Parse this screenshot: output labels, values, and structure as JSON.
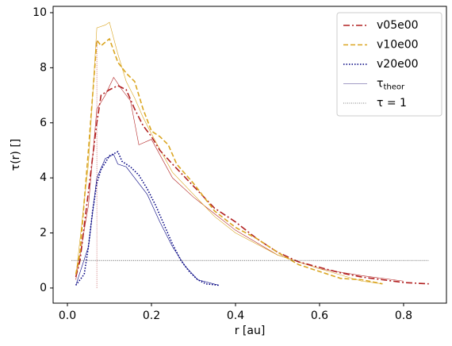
{
  "chart_data": {
    "type": "line",
    "xlabel": "r [au]",
    "ylabel": "τ(r) []",
    "xlim": [
      -0.034,
      0.902
    ],
    "ylim": [
      -0.55,
      10.23
    ],
    "xticks": [
      {
        "value": 0,
        "label": "0.0"
      },
      0.2,
      0.4,
      0.6,
      0.8
    ],
    "yticks": [
      0,
      2,
      4,
      6,
      8,
      10
    ],
    "legend": "upper right",
    "series": [
      {
        "name": "v05e00",
        "color": "#b22222",
        "dash": "dashdot",
        "x": [
          0.02,
          0.03,
          0.05,
          0.07,
          0.08,
          0.1,
          0.12,
          0.14,
          0.16,
          0.18,
          0.2,
          0.22,
          0.25,
          0.3,
          0.35,
          0.4,
          0.45,
          0.5,
          0.55,
          0.6,
          0.65,
          0.7,
          0.75,
          0.8,
          0.86
        ],
        "values": [
          0.4,
          1.0,
          3.5,
          6.0,
          7.0,
          7.2,
          7.35,
          7.2,
          6.5,
          5.9,
          5.5,
          5.0,
          4.5,
          3.7,
          2.9,
          2.4,
          1.8,
          1.3,
          0.95,
          0.75,
          0.55,
          0.4,
          0.3,
          0.2,
          0.15
        ]
      },
      {
        "name": "v10e00",
        "color": "#daa520",
        "dash": "dashed",
        "x": [
          0.02,
          0.03,
          0.05,
          0.07,
          0.08,
          0.1,
          0.12,
          0.14,
          0.16,
          0.18,
          0.2,
          0.22,
          0.24,
          0.26,
          0.3,
          0.35,
          0.4,
          0.45,
          0.5,
          0.55,
          0.6,
          0.65,
          0.7,
          0.75
        ],
        "values": [
          0.5,
          1.3,
          5.0,
          9.0,
          8.8,
          9.05,
          8.2,
          7.8,
          7.5,
          6.5,
          5.7,
          5.5,
          5.2,
          4.5,
          3.8,
          2.8,
          2.2,
          1.8,
          1.3,
          0.85,
          0.6,
          0.35,
          0.3,
          0.15
        ]
      },
      {
        "name": "v20e00",
        "color": "#000080",
        "dash": "dotted",
        "x": [
          0.02,
          0.04,
          0.05,
          0.06,
          0.07,
          0.08,
          0.1,
          0.12,
          0.13,
          0.15,
          0.17,
          0.19,
          0.21,
          0.23,
          0.25,
          0.27,
          0.29,
          0.31,
          0.33,
          0.36
        ],
        "values": [
          0.1,
          0.5,
          1.5,
          2.8,
          3.8,
          4.3,
          4.8,
          4.95,
          4.6,
          4.4,
          4.1,
          3.6,
          3.0,
          2.3,
          1.6,
          1.0,
          0.6,
          0.3,
          0.15,
          0.1
        ]
      }
    ],
    "theory": {
      "name": "τ",
      "subscript": "theor",
      "color": "#483d8b",
      "lines": [
        {
          "color": "#b22222",
          "x": [
            0.02,
            0.05,
            0.07,
            0.09,
            0.11,
            0.13,
            0.15,
            0.17,
            0.2,
            0.25,
            0.3,
            0.35,
            0.4,
            0.5,
            0.6,
            0.7,
            0.8
          ],
          "values": [
            0.3,
            3.0,
            6.5,
            7.0,
            7.65,
            7.2,
            6.8,
            5.2,
            5.4,
            4.0,
            3.3,
            2.7,
            2.1,
            1.2,
            0.7,
            0.45,
            0.25
          ]
        },
        {
          "color": "#daa520",
          "x": [
            0.02,
            0.05,
            0.07,
            0.09,
            0.1,
            0.12,
            0.14,
            0.16,
            0.18,
            0.2,
            0.25,
            0.3,
            0.35,
            0.4,
            0.5,
            0.6,
            0.7,
            0.75
          ],
          "values": [
            0.4,
            4.5,
            9.45,
            9.55,
            9.65,
            8.5,
            7.5,
            6.9,
            6.2,
            5.6,
            4.2,
            3.4,
            2.6,
            2.0,
            1.2,
            0.7,
            0.25,
            0.15
          ]
        },
        {
          "color": "#000080",
          "x": [
            0.02,
            0.05,
            0.07,
            0.09,
            0.11,
            0.12,
            0.14,
            0.16,
            0.19,
            0.22,
            0.25,
            0.28,
            0.31,
            0.36
          ],
          "values": [
            0.1,
            1.5,
            4.0,
            4.7,
            4.85,
            4.5,
            4.4,
            4.0,
            3.4,
            2.4,
            1.5,
            0.8,
            0.3,
            0.1
          ]
        }
      ]
    },
    "tau_one": {
      "name": "τ = 1",
      "color": "#000000",
      "y": 1,
      "xrange": [
        0.01,
        0.86
      ],
      "x": 0.07,
      "yrange": [
        0,
        9
      ]
    }
  }
}
